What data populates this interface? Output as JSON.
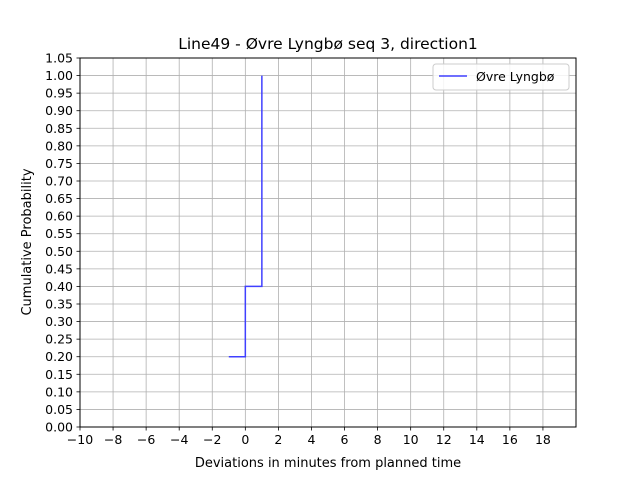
{
  "chart_data": {
    "type": "line",
    "step": "post",
    "title": "Line49 - Øvre Lyngbø seq 3, direction1",
    "xlabel": "Deviations in minutes from planned time",
    "ylabel": "Cumulative Probability",
    "xlim": [
      -10,
      20
    ],
    "ylim": [
      0,
      1.05
    ],
    "xticks": [
      -10,
      -8,
      -6,
      -4,
      -2,
      0,
      2,
      4,
      6,
      8,
      10,
      12,
      14,
      16,
      18
    ],
    "xtick_labels": [
      "−10",
      "−8",
      "−6",
      "−4",
      "−2",
      "0",
      "2",
      "4",
      "6",
      "8",
      "10",
      "12",
      "14",
      "16",
      "18"
    ],
    "yticks": [
      0,
      0.05,
      0.1,
      0.15,
      0.2,
      0.25,
      0.3,
      0.35,
      0.4,
      0.45,
      0.5,
      0.55,
      0.6,
      0.65,
      0.7,
      0.75,
      0.8,
      0.85,
      0.9,
      0.95,
      1.0,
      1.05
    ],
    "ytick_labels": [
      "0.00",
      "0.05",
      "0.10",
      "0.15",
      "0.20",
      "0.25",
      "0.30",
      "0.35",
      "0.40",
      "0.45",
      "0.50",
      "0.55",
      "0.60",
      "0.65",
      "0.70",
      "0.75",
      "0.80",
      "0.85",
      "0.90",
      "0.95",
      "1.00",
      "1.05"
    ],
    "grid": true,
    "legend_position": "top-right",
    "series": [
      {
        "name": "Øvre Lyngbø",
        "color": "#4040ff",
        "x": [
          -1,
          0,
          1,
          1
        ],
        "y": [
          0.2,
          0.4,
          1.0,
          1.0
        ]
      }
    ]
  }
}
